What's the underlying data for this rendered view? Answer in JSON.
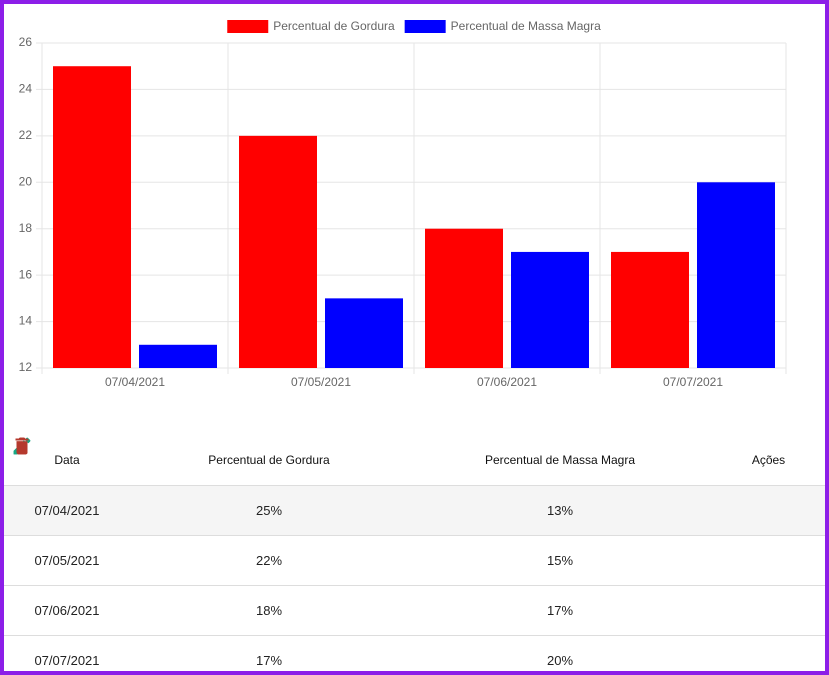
{
  "chart_data": {
    "type": "bar",
    "categories": [
      "07/04/2021",
      "07/05/2021",
      "07/06/2021",
      "07/07/2021"
    ],
    "series": [
      {
        "name": "Percentual de Gordura",
        "color": "#ff0000",
        "values": [
          25,
          22,
          18,
          17
        ]
      },
      {
        "name": "Percentual de Massa Magra",
        "color": "#0000ff",
        "values": [
          13,
          15,
          17,
          20
        ]
      }
    ],
    "ylim": [
      12,
      26
    ],
    "yticks": [
      12,
      14,
      16,
      18,
      20,
      22,
      24,
      26
    ],
    "grid": true,
    "legend": "top"
  },
  "table": {
    "headers": [
      "Data",
      "Percentual de Gordura",
      "Percentual de Massa Magra",
      "Ações"
    ],
    "rows": [
      [
        "07/04/2021",
        "25%",
        "13%"
      ],
      [
        "07/05/2021",
        "22%",
        "15%"
      ],
      [
        "07/06/2021",
        "18%",
        "17%"
      ],
      [
        "07/07/2021",
        "17%",
        "20%"
      ]
    ]
  }
}
